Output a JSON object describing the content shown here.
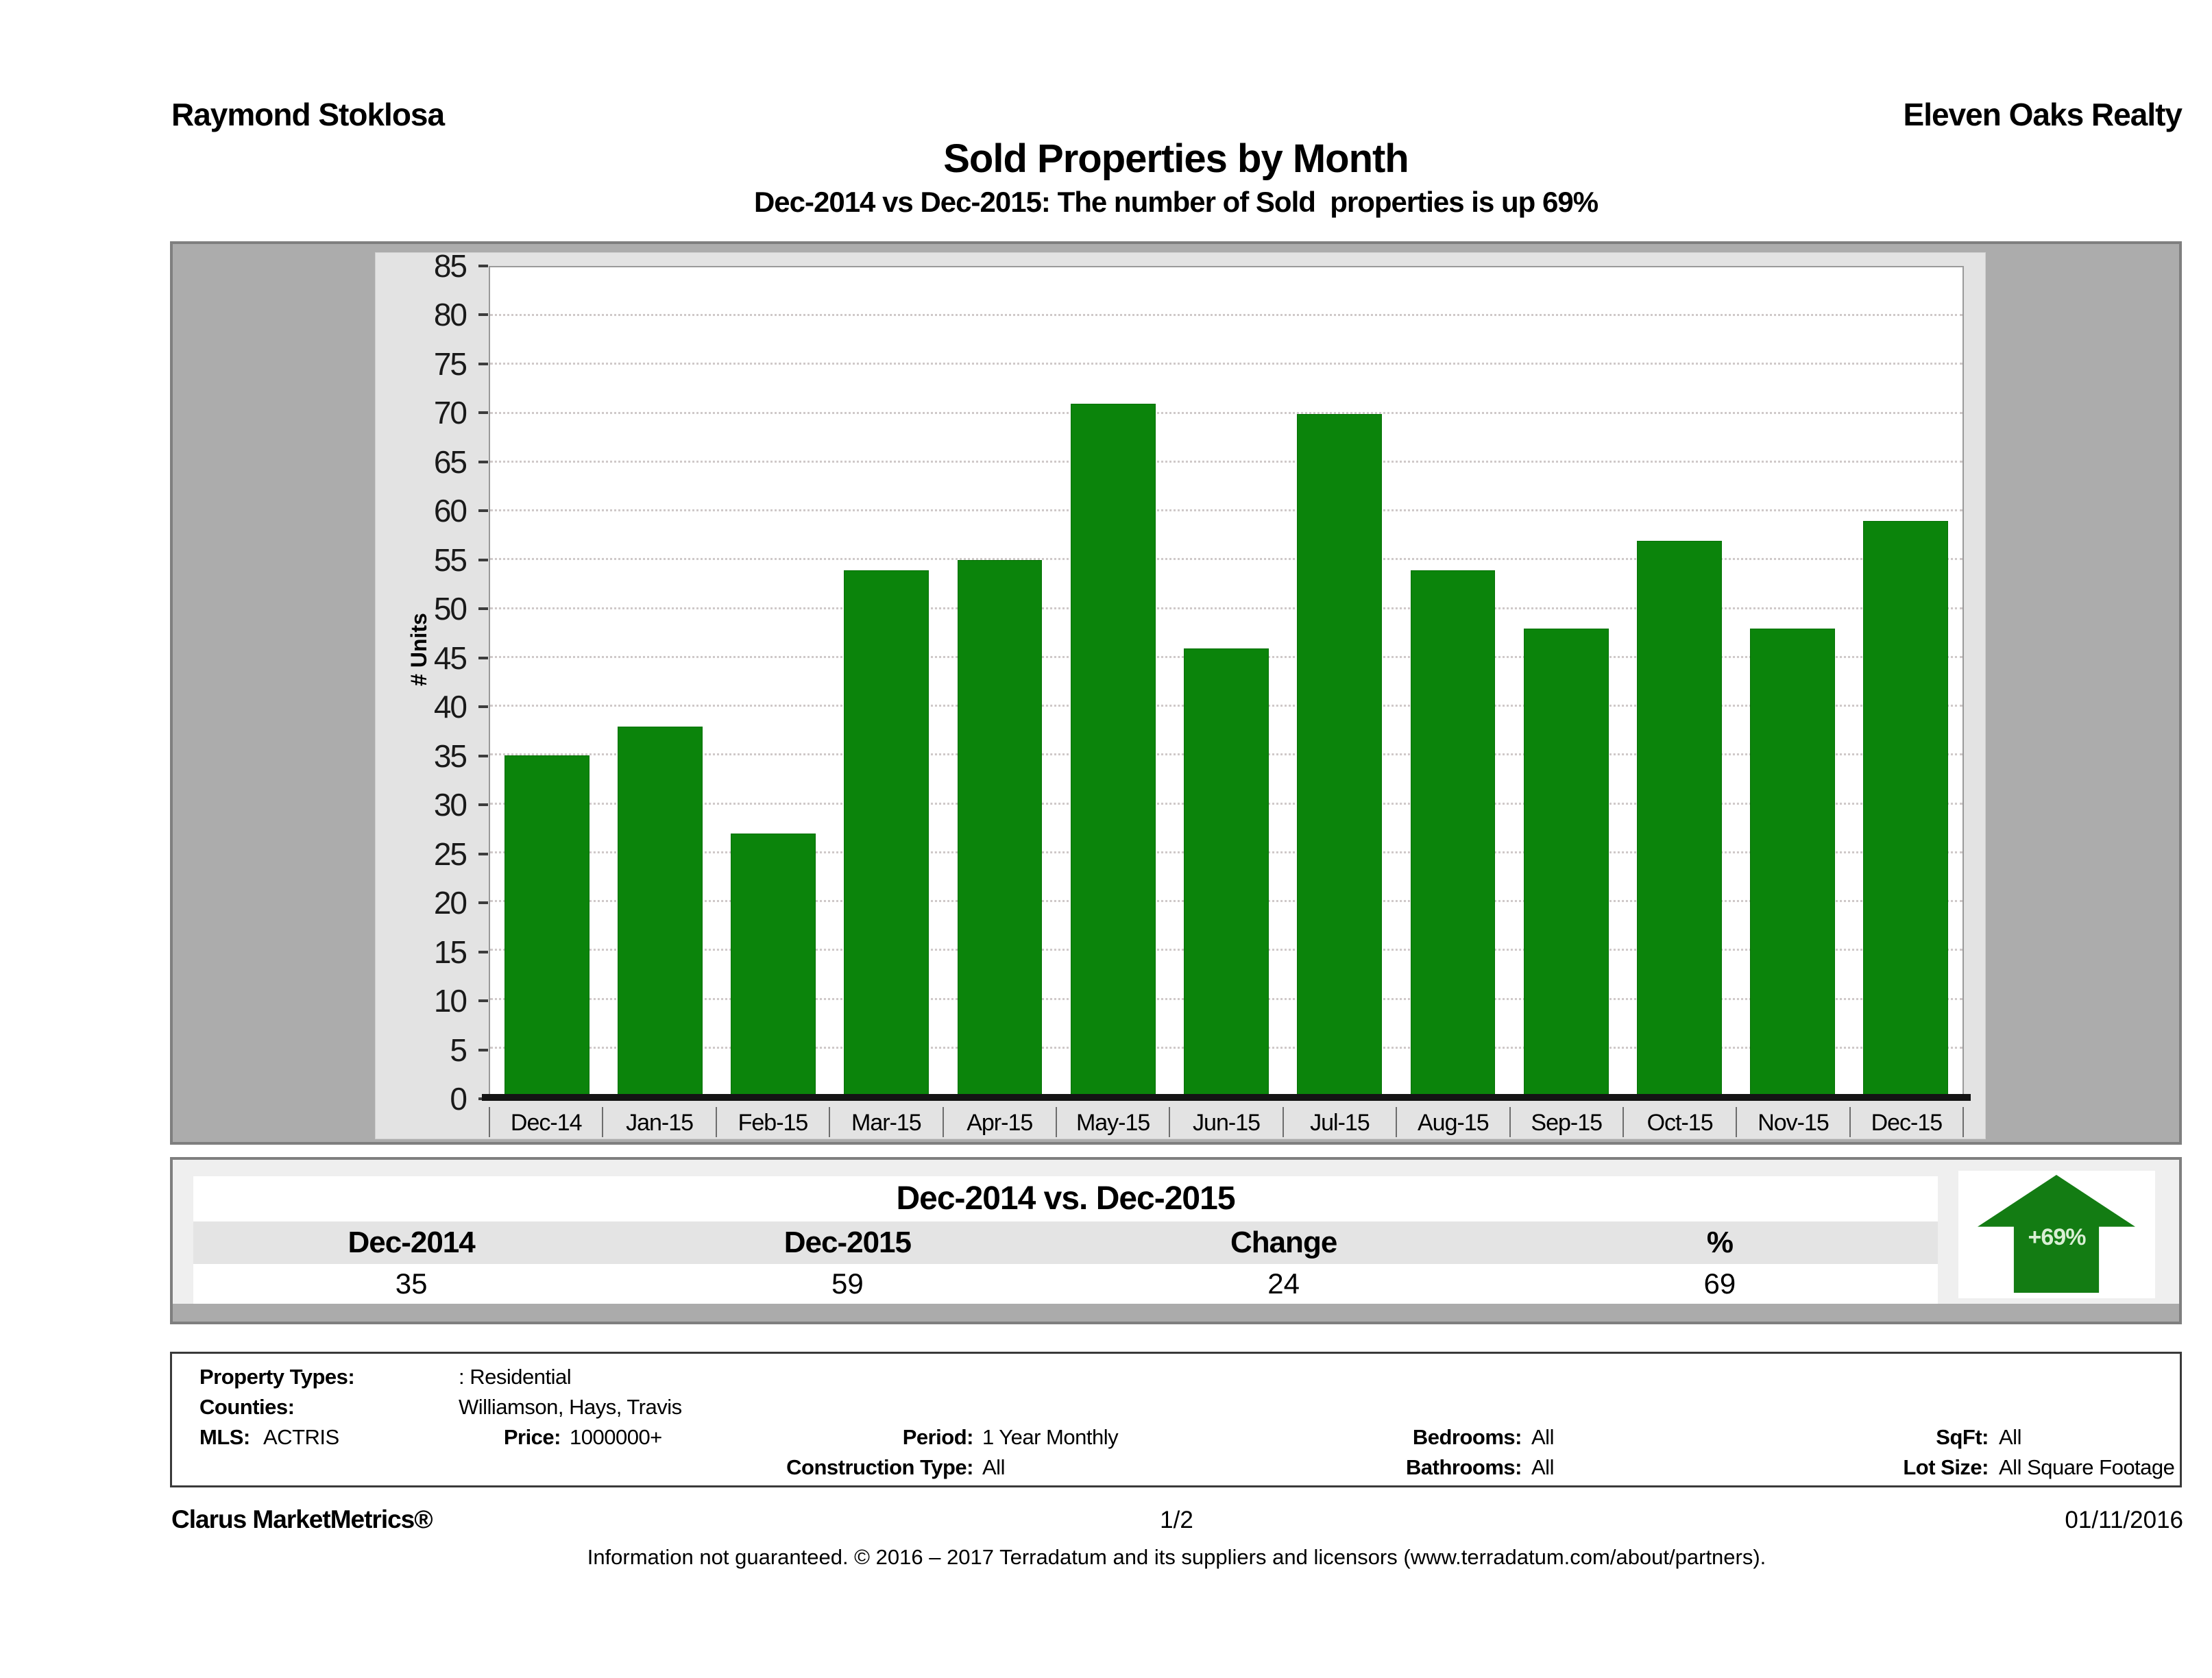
{
  "header": {
    "agent": "Raymond Stoklosa",
    "company": "Eleven Oaks Realty"
  },
  "title": "Sold Properties by Month",
  "subtitle": "Dec-2014 vs Dec-2015: The number of Sold  properties is up 69%",
  "chart_data": {
    "type": "bar",
    "title": "Sold Properties by Month",
    "categories": [
      "Dec-14",
      "Jan-15",
      "Feb-15",
      "Mar-15",
      "Apr-15",
      "May-15",
      "Jun-15",
      "Jul-15",
      "Aug-15",
      "Sep-15",
      "Oct-15",
      "Nov-15",
      "Dec-15"
    ],
    "values": [
      35,
      38,
      27,
      54,
      55,
      71,
      46,
      70,
      54,
      48,
      57,
      48,
      59
    ],
    "xlabel": "",
    "ylabel": "# Units",
    "ylim": [
      0,
      85
    ],
    "ytick_step": 5,
    "grid": "horizontal-dotted",
    "legend": "none",
    "bar_color": "#0b840b"
  },
  "summary": {
    "title": "Dec-2014 vs. Dec-2015",
    "columns": [
      "Dec-2014",
      "Dec-2015",
      "Change",
      "%"
    ],
    "values": [
      "35",
      "59",
      "24",
      "69"
    ],
    "badge": "+69%",
    "badge_icon": "up-arrow",
    "badge_color": "#137c13"
  },
  "filters": {
    "property_types_label": "Property Types:",
    "property_types": ": Residential",
    "counties_label": "Counties:",
    "counties": "Williamson, Hays, Travis",
    "mls_label": "MLS:",
    "mls": "ACTRIS",
    "price_label": "Price:",
    "price": "1000000+",
    "period_label": "Period:",
    "period": "1 Year Monthly",
    "construction_label": "Construction Type:",
    "construction": "All",
    "bedrooms_label": "Bedrooms:",
    "bedrooms": "All",
    "bathrooms_label": "Bathrooms:",
    "bathrooms": "All",
    "sqft_label": "SqFt:",
    "sqft": "All",
    "lot_label": "Lot Size:",
    "lot": "All Square Footage"
  },
  "footer": {
    "brand": "Clarus MarketMetrics®",
    "page": "1/2",
    "date": "01/11/2016",
    "disclaimer": "Information not guaranteed. © 2016 – 2017 Terradatum and its suppliers and licensors (www.terradatum.com/about/partners)."
  },
  "colors": {
    "bar_green": "#0b840b",
    "arrow_green": "#137c13",
    "chart_frame_gray": "#acacac",
    "panel_light_gray": "#e3e3e3",
    "gridline": "#cfc9c9"
  }
}
